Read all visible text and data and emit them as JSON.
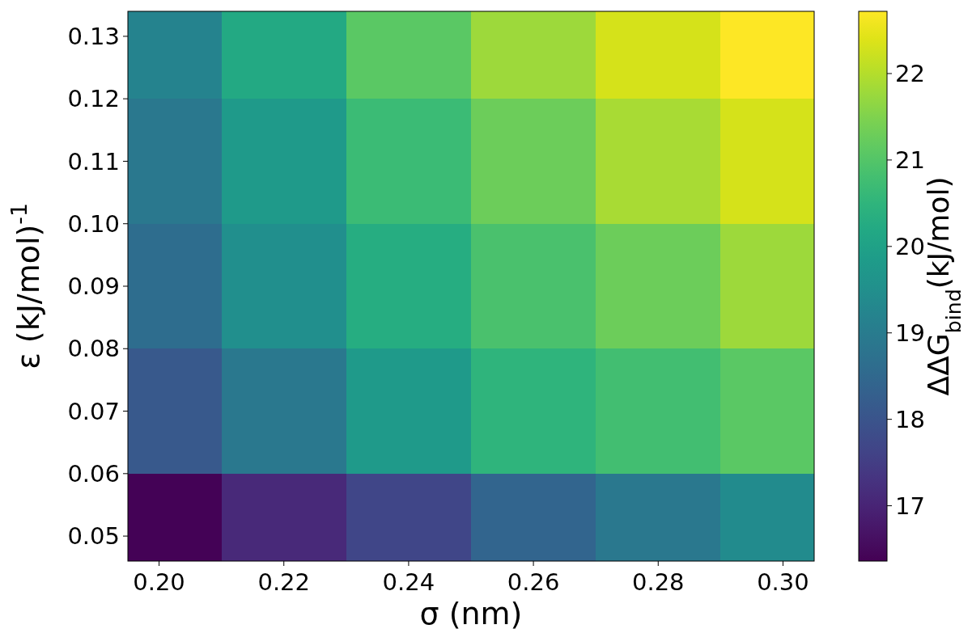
{
  "chart_data": {
    "type": "heatmap",
    "xlabel": "σ (nm)",
    "ylabel": "ε (kJ/mol)$^{-1}$",
    "clabel": "ΔΔG$_{bind}$(kJ/mol)",
    "x": [
      0.2,
      0.22,
      0.24,
      0.26,
      0.28,
      0.3
    ],
    "y": [
      0.13,
      0.11,
      0.09,
      0.07,
      0.05
    ],
    "cells": [
      [
        19.2,
        20.2,
        21.1,
        21.8,
        22.3,
        22.7
      ],
      [
        18.9,
        19.8,
        20.7,
        21.3,
        21.9,
        22.3
      ],
      [
        18.6,
        19.5,
        20.3,
        20.9,
        21.3,
        21.8
      ],
      [
        18.1,
        18.9,
        19.8,
        20.5,
        20.8,
        21.1
      ],
      [
        16.4,
        17.1,
        17.7,
        18.4,
        18.9,
        19.4
      ]
    ],
    "xlim": [
      0.195,
      0.305
    ],
    "ylim": [
      0.046,
      0.134
    ],
    "xticks": [
      {
        "value": 0.2,
        "label": "0.20"
      },
      {
        "value": 0.22,
        "label": "0.22"
      },
      {
        "value": 0.24,
        "label": "0.24"
      },
      {
        "value": 0.26,
        "label": "0.26"
      },
      {
        "value": 0.28,
        "label": "0.28"
      },
      {
        "value": 0.3,
        "label": "0.30"
      }
    ],
    "yticks": [
      {
        "value": 0.05,
        "label": "0.05"
      },
      {
        "value": 0.06,
        "label": "0.06"
      },
      {
        "value": 0.07,
        "label": "0.07"
      },
      {
        "value": 0.08,
        "label": "0.08"
      },
      {
        "value": 0.09,
        "label": "0.09"
      },
      {
        "value": 0.1,
        "label": "0.10"
      },
      {
        "value": 0.11,
        "label": "0.11"
      },
      {
        "value": 0.12,
        "label": "0.12"
      },
      {
        "value": 0.13,
        "label": "0.13"
      }
    ],
    "clim": [
      16.36,
      22.72
    ],
    "cticks": [
      17,
      18,
      19,
      20,
      21,
      22
    ]
  }
}
